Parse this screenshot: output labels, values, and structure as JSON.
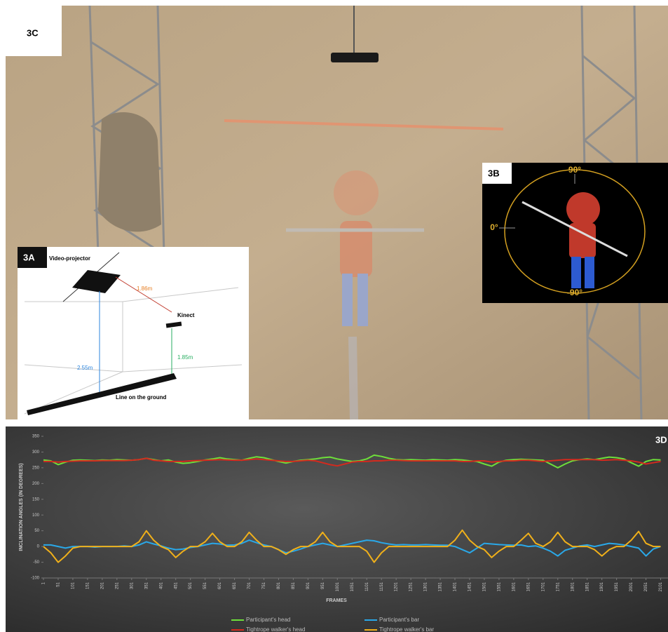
{
  "panels": {
    "photo": {
      "label": "3C"
    },
    "diagram": {
      "label": "3A",
      "projector": "Video-projector",
      "projector_distance": "1.86m",
      "kinect": "Kinect",
      "projector_height": "2.55m",
      "kinect_height": "1.85m",
      "ground": "Line on the ground"
    },
    "avatar": {
      "label": "3B",
      "top": "90°",
      "left": "0°",
      "bottom": "-90°"
    }
  },
  "chart_data": {
    "type": "line",
    "label": "3D",
    "x_label": "FRAMES",
    "y_label": "INCLINATION ANGLES (IN DEGREES)",
    "x": [
      1,
      26,
      51,
      76,
      101,
      126,
      151,
      176,
      201,
      226,
      251,
      276,
      301,
      326,
      351,
      376,
      401,
      426,
      451,
      476,
      501,
      526,
      551,
      576,
      601,
      626,
      651,
      676,
      701,
      726,
      751,
      776,
      801,
      826,
      851,
      876,
      901,
      926,
      951,
      976,
      1001,
      1026,
      1051,
      1076,
      1101,
      1126,
      1151,
      1176,
      1201,
      1226,
      1251,
      1276,
      1301,
      1326,
      1351,
      1376,
      1401,
      1426,
      1451,
      1476,
      1501,
      1526,
      1551,
      1576,
      1601,
      1626,
      1651,
      1676,
      1701,
      1726,
      1751,
      1776,
      1801,
      1826,
      1851,
      1876,
      1901,
      1926,
      1951,
      1976,
      2001,
      2026,
      2051,
      2076,
      2101
    ],
    "xlim": [
      1,
      2126
    ],
    "xticks": [
      1,
      51,
      101,
      151,
      201,
      251,
      301,
      351,
      401,
      451,
      501,
      551,
      601,
      651,
      701,
      751,
      801,
      851,
      901,
      951,
      1001,
      1051,
      1101,
      1151,
      1201,
      1251,
      1301,
      1351,
      1401,
      1451,
      1501,
      1551,
      1601,
      1651,
      1701,
      1751,
      1801,
      1851,
      1901,
      1951,
      2001,
      2051,
      2101
    ],
    "ylim": [
      -100,
      350
    ],
    "yticks": [
      -100,
      -50,
      0,
      50,
      100,
      150,
      200,
      250,
      300,
      350
    ],
    "series": [
      {
        "name": "Participant's head",
        "color": "#6ee03a",
        "values": [
          275,
          272,
          260,
          268,
          274,
          275,
          274,
          273,
          275,
          274,
          276,
          275,
          274,
          276,
          280,
          276,
          272,
          275,
          268,
          264,
          266,
          270,
          275,
          278,
          282,
          278,
          276,
          274,
          280,
          285,
          282,
          276,
          270,
          265,
          270,
          274,
          276,
          278,
          282,
          284,
          278,
          274,
          270,
          272,
          278,
          290,
          286,
          280,
          276,
          275,
          276,
          275,
          274,
          276,
          275,
          274,
          276,
          275,
          272,
          270,
          262,
          255,
          268,
          274,
          276,
          277,
          276,
          275,
          274,
          262,
          250,
          262,
          272,
          276,
          278,
          276,
          280,
          284,
          282,
          278,
          266,
          255,
          270,
          276,
          275
        ]
      },
      {
        "name": "Participant's bar",
        "color": "#2aa8e8",
        "values": [
          5,
          5,
          0,
          -5,
          0,
          0,
          0,
          -2,
          0,
          0,
          0,
          2,
          0,
          5,
          15,
          8,
          2,
          -5,
          -10,
          -8,
          -3,
          0,
          5,
          10,
          8,
          4,
          5,
          10,
          20,
          12,
          5,
          0,
          -10,
          -20,
          -15,
          -8,
          0,
          5,
          10,
          5,
          0,
          5,
          10,
          15,
          20,
          18,
          12,
          8,
          5,
          6,
          5,
          5,
          6,
          5,
          4,
          4,
          0,
          -10,
          -20,
          -5,
          10,
          8,
          6,
          5,
          4,
          5,
          0,
          2,
          -5,
          -15,
          -30,
          -12,
          -5,
          2,
          5,
          0,
          5,
          10,
          8,
          5,
          0,
          -5,
          -30,
          -8,
          0
        ]
      },
      {
        "name": "Tightrope walker's head",
        "color": "#d42a1e",
        "values": [
          270,
          270,
          268,
          270,
          271,
          272,
          272,
          272,
          273,
          273,
          273,
          273,
          274,
          276,
          280,
          274,
          272,
          270,
          270,
          270,
          272,
          273,
          274,
          275,
          276,
          275,
          274,
          274,
          276,
          278,
          276,
          274,
          272,
          270,
          270,
          272,
          274,
          272,
          266,
          260,
          256,
          262,
          268,
          270,
          270,
          272,
          272,
          274,
          274,
          273,
          272,
          272,
          272,
          272,
          272,
          272,
          272,
          270,
          270,
          272,
          272,
          268,
          270,
          272,
          272,
          274,
          274,
          272,
          270,
          272,
          274,
          276,
          276,
          276,
          276,
          276,
          274,
          275,
          276,
          274,
          272,
          268,
          262,
          266,
          270
        ]
      },
      {
        "name": "Tightrope walker's bar",
        "color": "#f0b01a",
        "values": [
          0,
          -20,
          -50,
          -30,
          -5,
          0,
          0,
          0,
          0,
          0,
          0,
          0,
          0,
          15,
          50,
          20,
          0,
          -10,
          -35,
          -15,
          0,
          0,
          15,
          42,
          15,
          0,
          0,
          15,
          45,
          20,
          0,
          0,
          -10,
          -25,
          -10,
          0,
          0,
          15,
          45,
          15,
          0,
          0,
          0,
          0,
          -15,
          -50,
          -20,
          0,
          0,
          0,
          0,
          0,
          0,
          0,
          0,
          0,
          20,
          52,
          20,
          0,
          -10,
          -35,
          -15,
          0,
          0,
          20,
          42,
          10,
          0,
          15,
          45,
          15,
          0,
          0,
          0,
          -10,
          -30,
          -10,
          0,
          0,
          20,
          48,
          10,
          0,
          0
        ]
      }
    ]
  }
}
